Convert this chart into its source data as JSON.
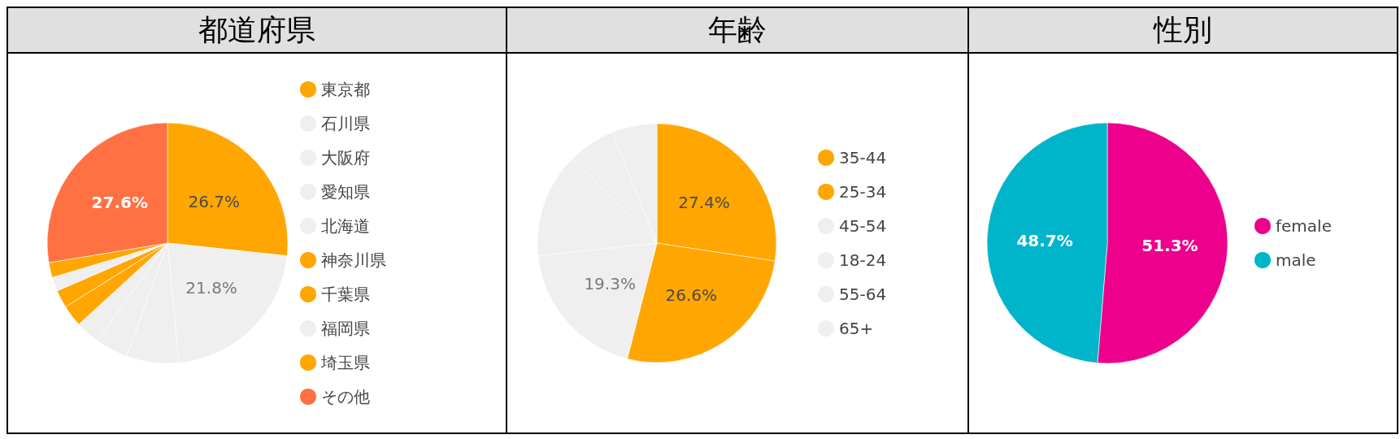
{
  "chart_data": [
    {
      "type": "pie",
      "title": "都道府県",
      "categories": [
        "東京都",
        "石川県",
        "大阪府",
        "愛知県",
        "北海道",
        "神奈川県",
        "千葉県",
        "福岡県",
        "埼玉県",
        "その他"
      ],
      "values": [
        26.7,
        21.8,
        7.0,
        4.4,
        3.3,
        2.9,
        2.4,
        1.9,
        2.0,
        27.6
      ],
      "colors": [
        "#ffa600",
        "#efefef",
        "#efefef",
        "#efefef",
        "#efefef",
        "#ffa600",
        "#ffa600",
        "#efefef",
        "#ffa600",
        "#ff7043"
      ],
      "value_labels": [
        "26.7%",
        "21.8%",
        null,
        null,
        null,
        null,
        null,
        null,
        null,
        "27.6%"
      ],
      "legend": "right"
    },
    {
      "type": "pie",
      "title": "年齢",
      "categories": [
        "35-44",
        "25-34",
        "45-54",
        "18-24",
        "55-64",
        "65+"
      ],
      "values": [
        27.4,
        26.6,
        19.3,
        14.2,
        6.4,
        6.1
      ],
      "colors": [
        "#ffa600",
        "#ffa600",
        "#efefef",
        "#efefef",
        "#efefef",
        "#efefef"
      ],
      "value_labels": [
        "27.4%",
        "26.6%",
        "19.3%",
        null,
        null,
        null
      ],
      "legend": "right"
    },
    {
      "type": "pie",
      "title": "性別",
      "categories": [
        "female",
        "male"
      ],
      "values": [
        51.3,
        48.7
      ],
      "colors": [
        "#ec008c",
        "#00b5c9"
      ],
      "value_labels": [
        "51.3%",
        "48.7%"
      ],
      "legend": "right"
    }
  ]
}
